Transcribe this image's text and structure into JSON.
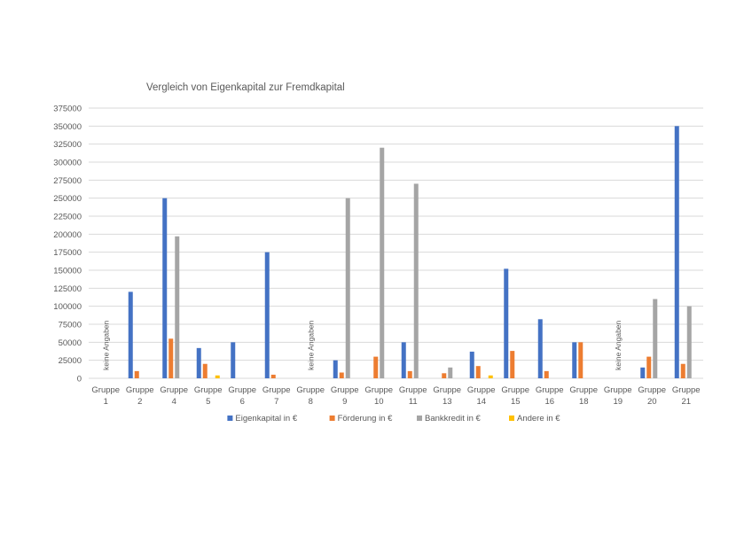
{
  "chart_data": {
    "type": "bar",
    "title": "Vergleich von Eigenkapital zur Fremdkapital",
    "categories": [
      "Gruppe 1",
      "Gruppe 2",
      "Gruppe 4",
      "Gruppe 5",
      "Gruppe 6",
      "Gruppe 7",
      "Gruppe 8",
      "Gruppe 9",
      "Gruppe 10",
      "Gruppe 11",
      "Gruppe 13",
      "Gruppe 14",
      "Gruppe 15",
      "Gruppe 16",
      "Gruppe 18",
      "Gruppe 19",
      "Gruppe 20",
      "Gruppe 21"
    ],
    "series": [
      {
        "name": "Eigenkapital in €",
        "color": "#4472C4",
        "values": [
          null,
          120000,
          250000,
          42000,
          50000,
          175000,
          null,
          25000,
          0,
          50000,
          0,
          37000,
          152000,
          82000,
          50000,
          null,
          15000,
          350000
        ]
      },
      {
        "name": "Förderung in €",
        "color": "#ED7D31",
        "values": [
          null,
          10000,
          55000,
          20000,
          0,
          5000,
          null,
          8000,
          30000,
          10000,
          7000,
          17000,
          38000,
          10000,
          50000,
          null,
          30000,
          20000
        ]
      },
      {
        "name": "Bankkredit in €",
        "color": "#A5A5A5",
        "values": [
          null,
          0,
          197000,
          0,
          0,
          0,
          null,
          250000,
          320000,
          270000,
          15000,
          0,
          0,
          0,
          0,
          null,
          110000,
          100000
        ]
      },
      {
        "name": "Andere in €",
        "color": "#FFC000",
        "values": [
          null,
          0,
          0,
          4000,
          0,
          0,
          null,
          0,
          0,
          0,
          0,
          4000,
          0,
          0,
          0,
          null,
          0,
          0
        ]
      }
    ],
    "annotations": [
      {
        "category": "Gruppe 1",
        "text": "keine Angaben"
      },
      {
        "category": "Gruppe 8",
        "text": "keine Angaben"
      },
      {
        "category": "Gruppe 19",
        "text": "keine Angaben"
      }
    ],
    "yticks": [
      0,
      25000,
      50000,
      75000,
      100000,
      125000,
      150000,
      175000,
      200000,
      225000,
      250000,
      275000,
      300000,
      325000,
      350000,
      375000
    ],
    "ylim": [
      0,
      375000
    ],
    "grid": true,
    "legend_position": "bottom"
  }
}
